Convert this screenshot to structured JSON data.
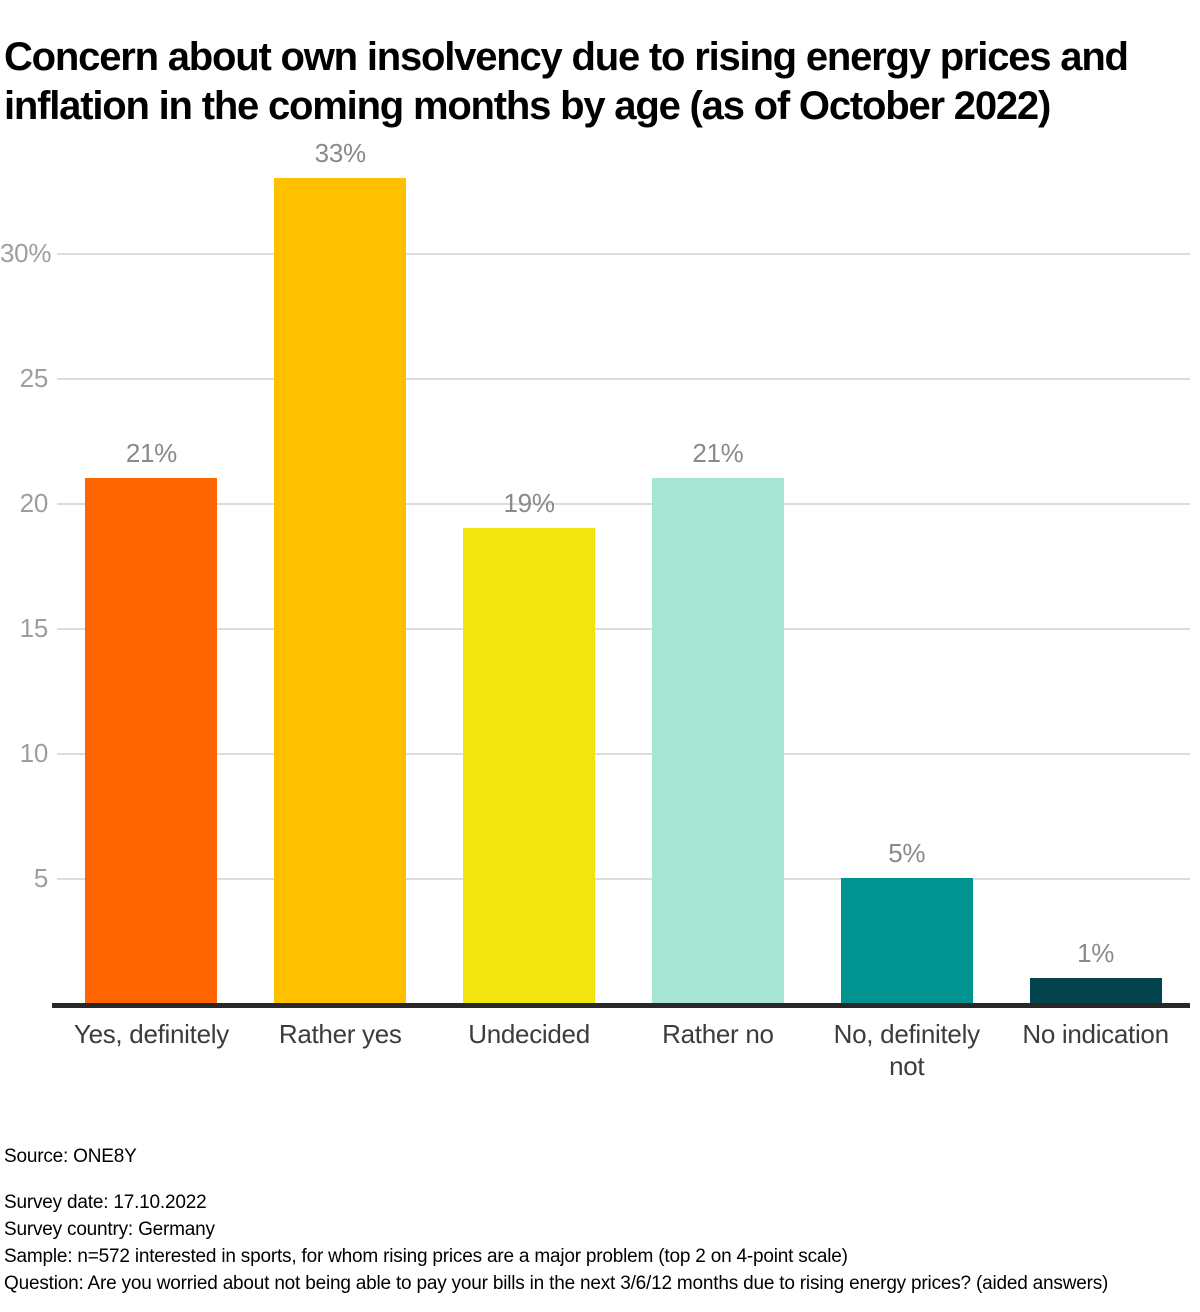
{
  "title": "Concern about own insolvency due to rising energy prices and inflation in the coming months by age (as of October 2022)",
  "chart_data": {
    "type": "bar",
    "title": "Concern about own insolvency due to rising energy prices and inflation in the coming months by age (as of October 2022)",
    "categories": [
      "Yes, definitely",
      "Rather yes",
      "Undecided",
      "Rather no",
      "No, definitely not",
      "No indication"
    ],
    "values": [
      21,
      33,
      19,
      21,
      5,
      1
    ],
    "value_labels": [
      "21%",
      "33%",
      "19%",
      "21%",
      "5%",
      "1%"
    ],
    "bar_colors": [
      "#FF6600",
      "#FFC000",
      "#F2E50F",
      "#A6E4D3",
      "#009390",
      "#04434E"
    ],
    "yticks": [
      {
        "value": 5,
        "label": "5"
      },
      {
        "value": 10,
        "label": "10"
      },
      {
        "value": 15,
        "label": "15"
      },
      {
        "value": 20,
        "label": "20"
      },
      {
        "value": 25,
        "label": "25"
      },
      {
        "value": 30,
        "label": "30%"
      }
    ],
    "ylim": [
      0,
      34
    ],
    "xlabel": "",
    "ylabel": "",
    "grid": true,
    "legend_position": "none",
    "axis_line_color": "#282828",
    "gridline_color": "#dcdcdc",
    "tick_label_color": "#9e9e9e",
    "value_label_color": "#8a8a8a",
    "category_label_color": "#3c3c3c"
  },
  "footer": {
    "source": "Source: ONE8Y",
    "survey_date": "Survey date: 17.10.2022",
    "survey_country": "Survey country: Germany",
    "sample": "Sample: n=572 interested in sports, for whom rising prices are a major problem (top 2 on 4-point scale)",
    "question": "Question: Are you worried about not being able to pay your bills in the next 3/6/12 months due to rising energy prices? (aided answers)"
  }
}
